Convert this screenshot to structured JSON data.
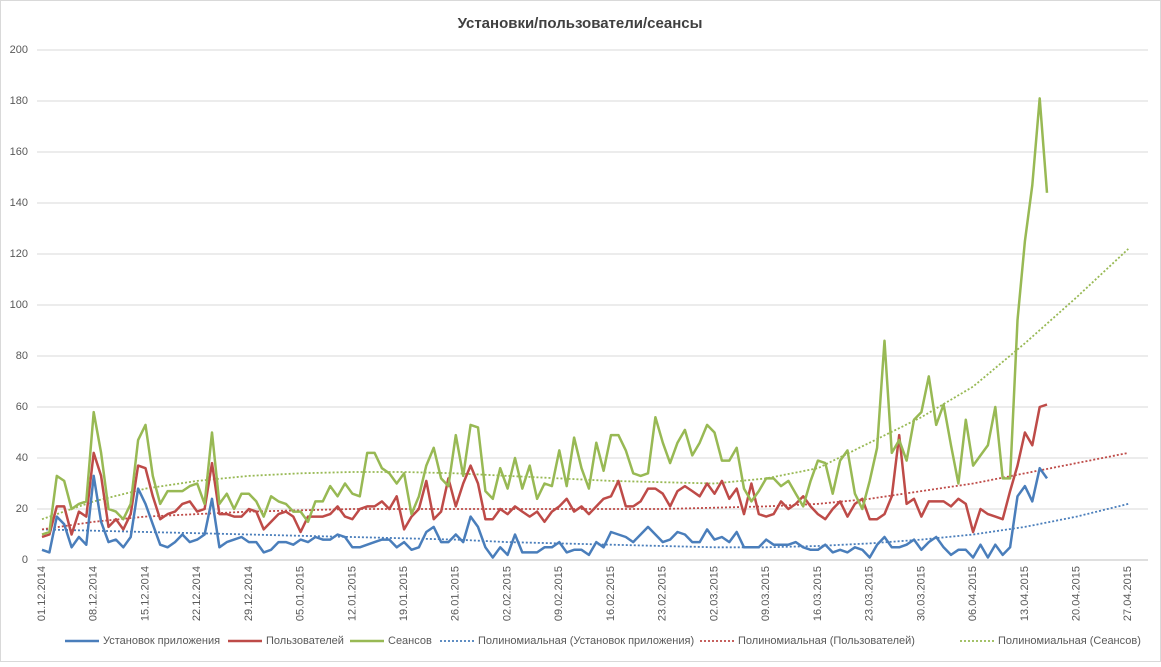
{
  "chart_data": {
    "type": "line",
    "title": "Установки/пользователи/сеансы",
    "categories": [
      "01.12.2014",
      null,
      null,
      null,
      null,
      null,
      null,
      "08.12.2014",
      null,
      null,
      null,
      null,
      null,
      null,
      "15.12.2014",
      null,
      null,
      null,
      null,
      null,
      null,
      "22.12.2014",
      null,
      null,
      null,
      null,
      null,
      null,
      "29.12.2014",
      null,
      null,
      null,
      null,
      null,
      null,
      "05.01.2015",
      null,
      null,
      null,
      null,
      null,
      null,
      "12.01.2015",
      null,
      null,
      null,
      null,
      null,
      null,
      "19.01.2015",
      null,
      null,
      null,
      null,
      null,
      null,
      "26.01.2015",
      null,
      null,
      null,
      null,
      null,
      null,
      "02.02.2015",
      null,
      null,
      null,
      null,
      null,
      null,
      "09.02.2015",
      null,
      null,
      null,
      null,
      null,
      null,
      "16.02.2015",
      null,
      null,
      null,
      null,
      null,
      null,
      "23.02.2015",
      null,
      null,
      null,
      null,
      null,
      null,
      "02.03.2015",
      null,
      null,
      null,
      null,
      null,
      null,
      "09.03.2015",
      null,
      null,
      null,
      null,
      null,
      null,
      "16.03.2015",
      null,
      null,
      null,
      null,
      null,
      null,
      "23.03.2015",
      null,
      null,
      null,
      null,
      null,
      null,
      "30.03.2015",
      null,
      null,
      null,
      null,
      null,
      null,
      "06.04.2015",
      null,
      null,
      null,
      null,
      null,
      null,
      "13.04.2015",
      null,
      null,
      null,
      null,
      null,
      null,
      "20.04.2015",
      null,
      null,
      null,
      null,
      null,
      null,
      "27.04.2015"
    ],
    "ylim": [
      0,
      200
    ],
    "yticks": [
      0,
      20,
      40,
      60,
      80,
      100,
      120,
      140,
      160,
      180,
      200
    ],
    "grid": true,
    "legend": "bottom",
    "series": [
      {
        "name": "Установок приложения",
        "color": "#4a7ebb",
        "dotted": false,
        "values": [
          4,
          3,
          17,
          14,
          5,
          9,
          6,
          33,
          15,
          7,
          8,
          5,
          9,
          28,
          22,
          14,
          6,
          5,
          7,
          10,
          7,
          8,
          10,
          24,
          5,
          7,
          8,
          9,
          7,
          7,
          3,
          4,
          7,
          7,
          6,
          8,
          7,
          9,
          8,
          8,
          10,
          9,
          5,
          5,
          6,
          7,
          8,
          8,
          5,
          7,
          4,
          5,
          11,
          13,
          7,
          7,
          10,
          7,
          17,
          13,
          5,
          1,
          5,
          2,
          10,
          3,
          3,
          3,
          5,
          5,
          7,
          3,
          4,
          4,
          2,
          7,
          5,
          11,
          10,
          9,
          7,
          10,
          13,
          10,
          7,
          8,
          11,
          10,
          7,
          7,
          12,
          8,
          9,
          7,
          11,
          5,
          5,
          5,
          8,
          6,
          6,
          6,
          7,
          5,
          4,
          4,
          6,
          3,
          4,
          3,
          5,
          4,
          1,
          6,
          9,
          5,
          5,
          6,
          8,
          4,
          7,
          9,
          5,
          2,
          4,
          4,
          1,
          6,
          1,
          6,
          2,
          5,
          25,
          29,
          23,
          36,
          32,
          null,
          null,
          null,
          null,
          null,
          null,
          null,
          null,
          null,
          null,
          null
        ]
      },
      {
        "name": "Пользователей",
        "color": "#be4b48",
        "dotted": false,
        "values": [
          9,
          10,
          21,
          21,
          10,
          19,
          17,
          42,
          33,
          13,
          16,
          12,
          18,
          37,
          36,
          25,
          16,
          18,
          19,
          22,
          23,
          19,
          20,
          38,
          18,
          18,
          17,
          17,
          20,
          19,
          12,
          15,
          18,
          19,
          17,
          11,
          17,
          17,
          17,
          18,
          21,
          17,
          16,
          20,
          21,
          21,
          23,
          20,
          25,
          12,
          17,
          20,
          31,
          16,
          19,
          32,
          21,
          30,
          37,
          30,
          16,
          16,
          20,
          18,
          21,
          19,
          17,
          19,
          15,
          19,
          21,
          24,
          19,
          21,
          18,
          21,
          24,
          25,
          31,
          21,
          21,
          23,
          28,
          28,
          26,
          21,
          27,
          29,
          27,
          25,
          30,
          26,
          31,
          24,
          28,
          18,
          30,
          18,
          17,
          18,
          23,
          20,
          22,
          25,
          21,
          18,
          16,
          20,
          23,
          17,
          22,
          24,
          16,
          16,
          18,
          25,
          49,
          22,
          24,
          17,
          23,
          23,
          23,
          21,
          24,
          22,
          11,
          20,
          18,
          17,
          16,
          27,
          37,
          50,
          45,
          60,
          61,
          null,
          null,
          null,
          null,
          null,
          null,
          null,
          null,
          null,
          null,
          null
        ]
      },
      {
        "name": "Сеансов",
        "color": "#98b954",
        "dotted": false,
        "values": [
          10,
          11,
          33,
          31,
          20,
          22,
          23,
          58,
          42,
          20,
          19,
          16,
          22,
          47,
          53,
          33,
          22,
          27,
          27,
          27,
          29,
          30,
          22,
          50,
          22,
          26,
          20,
          26,
          26,
          23,
          17,
          25,
          23,
          22,
          19,
          19,
          15,
          23,
          23,
          29,
          25,
          30,
          26,
          25,
          42,
          42,
          36,
          34,
          30,
          34,
          18,
          25,
          37,
          44,
          32,
          29,
          49,
          33,
          53,
          52,
          27,
          24,
          36,
          28,
          40,
          28,
          37,
          24,
          30,
          29,
          43,
          29,
          48,
          36,
          28,
          46,
          35,
          49,
          49,
          43,
          34,
          33,
          34,
          56,
          46,
          38,
          46,
          51,
          41,
          46,
          53,
          50,
          39,
          39,
          44,
          28,
          23,
          27,
          32,
          32,
          29,
          31,
          26,
          21,
          31,
          39,
          38,
          26,
          39,
          43,
          26,
          20,
          31,
          44,
          86,
          42,
          47,
          39,
          55,
          58,
          72,
          53,
          61,
          45,
          30,
          55,
          37,
          41,
          45,
          60,
          32,
          32,
          94,
          125,
          147,
          181,
          144,
          null,
          null,
          null,
          null,
          null,
          null,
          null,
          null,
          null,
          null,
          null
        ]
      },
      {
        "name": "Полиномиальная (Установок приложения)",
        "color": "#4a7ebb",
        "dotted": true,
        "x": [
          "01.12.2014",
          "08.12.2014",
          "15.12.2014",
          "22.12.2014",
          "29.12.2014",
          "05.01.2015",
          "12.01.2015",
          "19.01.2015",
          "26.01.2015",
          "02.02.2015",
          "09.02.2015",
          "16.02.2015",
          "23.02.2015",
          "02.03.2015",
          "09.03.2015",
          "16.03.2015",
          "23.03.2015",
          "30.03.2015",
          "06.04.2015",
          "13.04.2015",
          "20.04.2015",
          "27.04.2015"
        ],
        "values": [
          12,
          11.5,
          11,
          10.5,
          10,
          9.5,
          9,
          8.5,
          8,
          7,
          6.5,
          6,
          5.5,
          5,
          5,
          5.5,
          6.5,
          8,
          10,
          13,
          17,
          22
        ]
      },
      {
        "name": "Полиномиальная (Пользователей)",
        "color": "#be4b48",
        "dotted": true,
        "x": [
          "01.12.2014",
          "08.12.2014",
          "15.12.2014",
          "22.12.2014",
          "29.12.2014",
          "05.01.2015",
          "12.01.2015",
          "19.01.2015",
          "26.01.2015",
          "02.02.2015",
          "09.02.2015",
          "16.02.2015",
          "23.02.2015",
          "02.03.2015",
          "09.03.2015",
          "16.03.2015",
          "23.03.2015",
          "30.03.2015",
          "06.04.2015",
          "13.04.2015",
          "20.04.2015",
          "27.04.2015"
        ],
        "values": [
          12,
          15,
          17,
          18,
          19,
          19.5,
          20,
          20,
          20,
          20,
          20,
          20,
          20,
          20.5,
          21,
          22,
          24,
          27,
          30,
          34,
          38,
          42
        ]
      },
      {
        "name": "Полиномиальная (Сеансов)",
        "color": "#98b954",
        "dotted": true,
        "x": [
          "01.12.2014",
          "08.12.2014",
          "15.12.2014",
          "22.12.2014",
          "29.12.2014",
          "05.01.2015",
          "12.01.2015",
          "19.01.2015",
          "26.01.2015",
          "02.02.2015",
          "09.02.2015",
          "16.02.2015",
          "23.02.2015",
          "02.03.2015",
          "09.03.2015",
          "16.03.2015",
          "23.03.2015",
          "30.03.2015",
          "06.04.2015",
          "13.04.2015",
          "20.04.2015",
          "27.04.2015"
        ],
        "values": [
          16,
          23,
          28,
          31,
          33,
          34,
          34.5,
          34.5,
          34,
          33,
          32,
          31,
          30.5,
          30,
          32,
          36,
          46,
          56,
          68,
          85,
          103,
          122
        ]
      }
    ]
  }
}
